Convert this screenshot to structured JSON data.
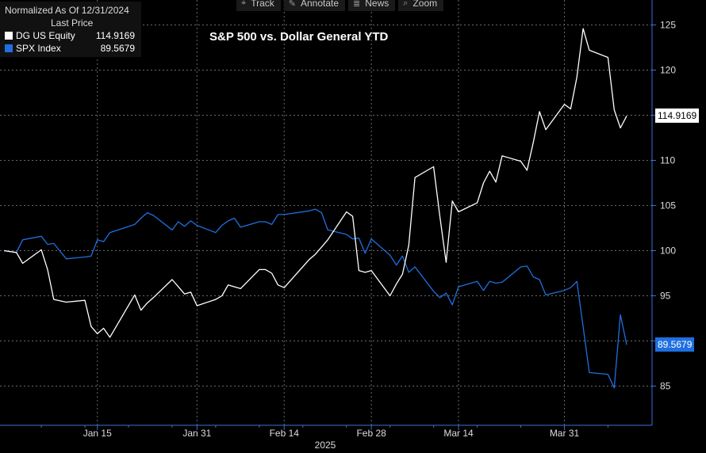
{
  "toolbar": [
    {
      "label": "Track",
      "icon": "crosshair-icon",
      "glyph": "⌖"
    },
    {
      "label": "Annotate",
      "icon": "pencil-icon",
      "glyph": "✎"
    },
    {
      "label": "News",
      "icon": "news-icon",
      "glyph": "≣"
    },
    {
      "label": "Zoom",
      "icon": "magnifier-icon",
      "glyph": "⌕"
    }
  ],
  "legend": {
    "header": "Normalized As Of 12/31/2024",
    "subheader": "Last Price",
    "entries": [
      {
        "name": "DG US Equity",
        "value": "114.9169",
        "color": "#ffffff"
      },
      {
        "name": "SPX Index",
        "value": "89.5679",
        "color": "#1f6fe0"
      }
    ]
  },
  "chart_data": {
    "type": "line",
    "title": "S&P 500 vs. Dollar General YTD",
    "x_tick_labels": [
      "Jan 15",
      "Jan 31",
      "Feb 14",
      "Feb 28",
      "Mar 14",
      "Mar 31"
    ],
    "x_year_label": "2025",
    "y_tick_labels": [
      "85",
      "90",
      "95",
      "100",
      "105",
      "110",
      "115",
      "120",
      "125"
    ],
    "ylim": [
      80,
      127
    ],
    "grid": true,
    "x": [
      "2024-12-31",
      "2025-01-02",
      "2025-01-03",
      "2025-01-06",
      "2025-01-07",
      "2025-01-08",
      "2025-01-10",
      "2025-01-13",
      "2025-01-14",
      "2025-01-15",
      "2025-01-16",
      "2025-01-17",
      "2025-01-21",
      "2025-01-22",
      "2025-01-23",
      "2025-01-24",
      "2025-01-27",
      "2025-01-28",
      "2025-01-29",
      "2025-01-30",
      "2025-01-31",
      "2025-02-03",
      "2025-02-04",
      "2025-02-05",
      "2025-02-06",
      "2025-02-07",
      "2025-02-10",
      "2025-02-11",
      "2025-02-12",
      "2025-02-13",
      "2025-02-14",
      "2025-02-18",
      "2025-02-19",
      "2025-02-20",
      "2025-02-21",
      "2025-02-24",
      "2025-02-25",
      "2025-02-26",
      "2025-02-27",
      "2025-02-28",
      "2025-03-03",
      "2025-03-04",
      "2025-03-05",
      "2025-03-06",
      "2025-03-07",
      "2025-03-10",
      "2025-03-11",
      "2025-03-12",
      "2025-03-13",
      "2025-03-14",
      "2025-03-17",
      "2025-03-18",
      "2025-03-19",
      "2025-03-20",
      "2025-03-21",
      "2025-03-24",
      "2025-03-25",
      "2025-03-26",
      "2025-03-27",
      "2025-03-28",
      "2025-03-31",
      "2025-04-01",
      "2025-04-02",
      "2025-04-03",
      "2025-04-04",
      "2025-04-07",
      "2025-04-08",
      "2025-04-09",
      "2025-04-10"
    ],
    "series": [
      {
        "name": "DG US Equity",
        "color": "#ffffff",
        "last": "114.9169",
        "values": [
          100,
          99.8,
          98.6,
          100.1,
          97.9,
          94.6,
          94.3,
          94.5,
          91.6,
          90.8,
          91.4,
          90.4,
          95.1,
          93.4,
          94.2,
          94.8,
          96.8,
          96.0,
          95.2,
          95.4,
          93.9,
          94.6,
          95.0,
          96.2,
          96.0,
          95.8,
          97.9,
          97.9,
          97.5,
          96.2,
          95.9,
          99.0,
          99.6,
          100.4,
          101.2,
          104.3,
          103.8,
          97.8,
          97.6,
          97.8,
          95.0,
          96.3,
          97.4,
          100.6,
          108.1,
          109.3,
          103.8,
          98.7,
          105.5,
          104.3,
          105.3,
          107.5,
          108.8,
          107.6,
          110.5,
          109.9,
          108.9,
          112.0,
          115.4,
          113.4,
          116.2,
          115.7,
          119.2,
          124.6,
          122.2,
          121.4,
          115.6,
          113.6,
          114.9169
        ]
      },
      {
        "name": "SPX Index",
        "color": "#1f6fe0",
        "last": "89.5679",
        "values": [
          100,
          99.8,
          101.2,
          101.6,
          100.7,
          100.8,
          99.1,
          99.3,
          99.4,
          101.2,
          101.0,
          102.0,
          102.9,
          103.6,
          104.2,
          103.9,
          102.3,
          103.2,
          102.7,
          103.3,
          102.8,
          102.0,
          102.8,
          103.3,
          103.6,
          102.6,
          103.2,
          103.2,
          102.9,
          104.0,
          104.0,
          104.4,
          104.6,
          104.2,
          102.3,
          101.8,
          101.3,
          101.4,
          99.7,
          101.3,
          99.5,
          98.4,
          99.4,
          97.6,
          98.2,
          95.5,
          94.8,
          95.3,
          94.0,
          96.0,
          96.6,
          95.6,
          96.6,
          96.4,
          96.5,
          98.2,
          98.3,
          97.1,
          96.8,
          95.1,
          95.6,
          95.9,
          96.6,
          91.6,
          86.5,
          86.3,
          84.8,
          92.9,
          89.5679
        ]
      }
    ]
  }
}
